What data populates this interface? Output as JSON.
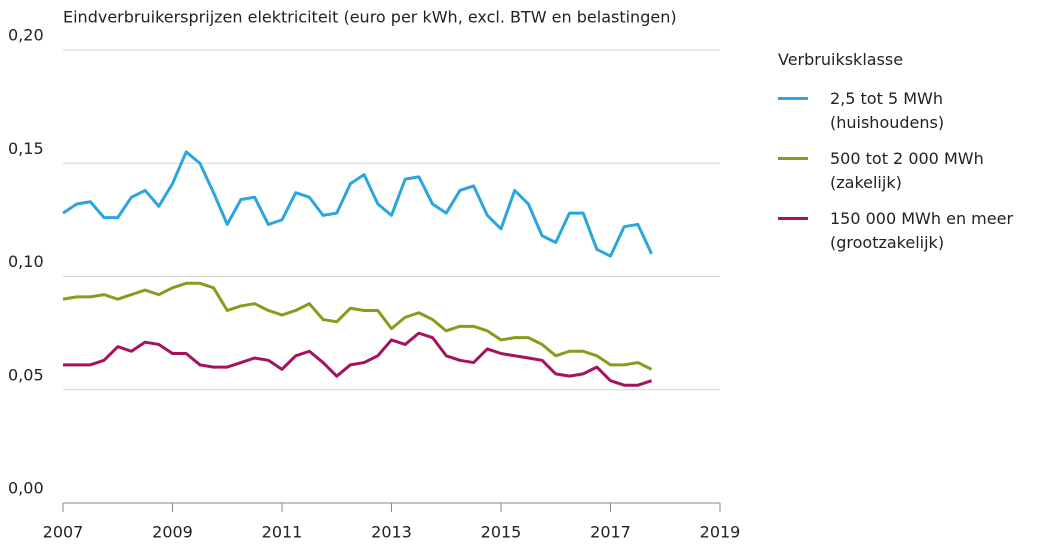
{
  "chart_data": {
    "type": "line",
    "title": "Eindverbruikersprijzen elektriciteit (euro per kWh, excl. BTW en belastingen)",
    "legend_title": "Verbruiksklasse",
    "x": [
      2007,
      2007.25,
      2007.5,
      2007.75,
      2008,
      2008.25,
      2008.5,
      2008.75,
      2009,
      2009.25,
      2009.5,
      2009.75,
      2010,
      2010.25,
      2010.5,
      2010.75,
      2011,
      2011.25,
      2011.5,
      2011.75,
      2012,
      2012.25,
      2012.5,
      2012.75,
      2013,
      2013.25,
      2013.5,
      2013.75,
      2014,
      2014.25,
      2014.5,
      2014.75,
      2015,
      2015.25,
      2015.5,
      2015.75,
      2016,
      2016.25,
      2016.5,
      2016.75,
      2017,
      2017.25,
      2017.5,
      2017.75
    ],
    "series": [
      {
        "name": "2,5 tot 5 MWh (huishoudens)",
        "color": "#2ba6dd",
        "values": [
          0.128,
          0.132,
          0.133,
          0.126,
          0.126,
          0.135,
          0.138,
          0.131,
          0.141,
          0.155,
          0.15,
          0.137,
          0.123,
          0.134,
          0.135,
          0.123,
          0.125,
          0.137,
          0.135,
          0.127,
          0.128,
          0.141,
          0.145,
          0.132,
          0.127,
          0.143,
          0.144,
          0.132,
          0.128,
          0.138,
          0.14,
          0.127,
          0.121,
          0.138,
          0.132,
          0.118,
          0.115,
          0.128,
          0.128,
          0.112,
          0.109,
          0.122,
          0.123,
          0.11
        ]
      },
      {
        "name": "500 tot 2 000 MWh (zakelijk)",
        "color": "#8b9a1c",
        "values": [
          0.09,
          0.091,
          0.091,
          0.092,
          0.09,
          0.092,
          0.094,
          0.092,
          0.095,
          0.097,
          0.097,
          0.095,
          0.085,
          0.087,
          0.088,
          0.085,
          0.083,
          0.085,
          0.088,
          0.081,
          0.08,
          0.086,
          0.085,
          0.085,
          0.077,
          0.082,
          0.084,
          0.081,
          0.076,
          0.078,
          0.078,
          0.076,
          0.072,
          0.073,
          0.073,
          0.07,
          0.065,
          0.067,
          0.067,
          0.065,
          0.061,
          0.061,
          0.062,
          0.059
        ]
      },
      {
        "name": "150 000 MWh en meer (grootzakelijk)",
        "color": "#a5135e",
        "values": [
          0.061,
          0.061,
          0.061,
          0.063,
          0.069,
          0.067,
          0.071,
          0.07,
          0.066,
          0.066,
          0.061,
          0.06,
          0.06,
          0.062,
          0.064,
          0.063,
          0.059,
          0.065,
          0.067,
          0.062,
          0.056,
          0.061,
          0.062,
          0.065,
          0.072,
          0.07,
          0.075,
          0.073,
          0.065,
          0.063,
          0.062,
          0.068,
          0.066,
          0.065,
          0.064,
          0.063,
          0.057,
          0.056,
          0.057,
          0.06,
          0.054,
          0.052,
          0.052,
          0.054
        ]
      }
    ],
    "xlim": [
      2007,
      2019
    ],
    "xticks": [
      2007,
      2009,
      2011,
      2013,
      2015,
      2017,
      2019
    ],
    "ylim": [
      0,
      0.2
    ],
    "yticks": [
      {
        "value": 0,
        "label": "0,00"
      },
      {
        "value": 0.05,
        "label": "0,05"
      },
      {
        "value": 0.1,
        "label": "0,10"
      },
      {
        "value": 0.15,
        "label": "0,15"
      },
      {
        "value": 0.2,
        "label": "0,20"
      }
    ],
    "grid": true
  }
}
